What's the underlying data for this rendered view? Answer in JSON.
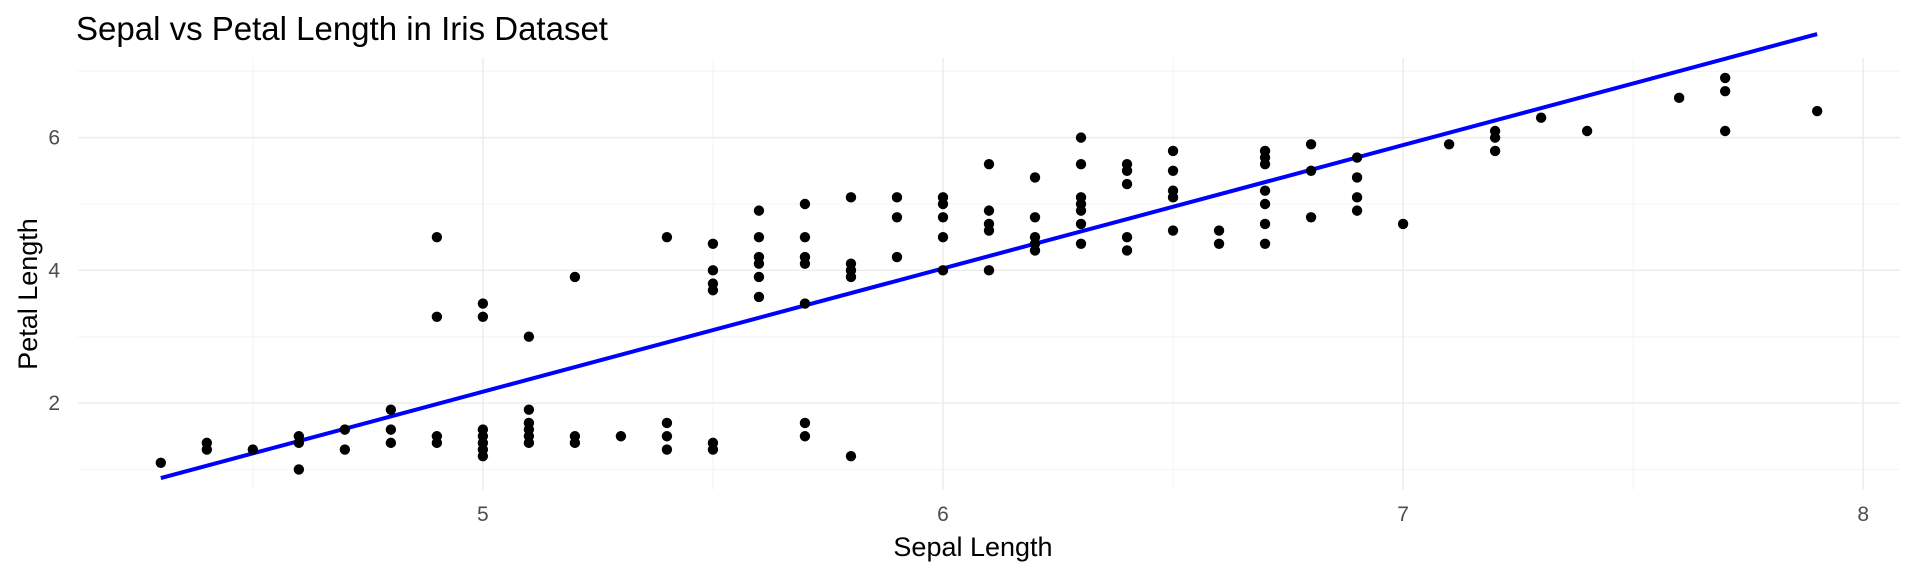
{
  "chart_data": {
    "type": "scatter",
    "title": "Sepal vs Petal Length in Iris Dataset",
    "xlabel": "Sepal Length",
    "ylabel": "Petal Length",
    "xlim": [
      4.12,
      8.08
    ],
    "ylim": [
      0.69,
      7.2
    ],
    "x_ticks": [
      5,
      6,
      7,
      8
    ],
    "y_ticks": [
      2,
      4,
      6
    ],
    "x_minor_ticks": [
      4.5,
      5.5,
      6.5,
      7.5
    ],
    "y_minor_ticks": [
      1,
      3,
      5,
      7
    ],
    "x_tick_labels": [
      "5",
      "6",
      "7",
      "8"
    ],
    "y_tick_labels": [
      "2",
      "4",
      "6"
    ],
    "grid": true,
    "point_color": "#000000",
    "trend_line": {
      "color": "#0000ff",
      "x": [
        4.3,
        7.9
      ],
      "y": [
        0.87,
        7.56
      ]
    },
    "points": [
      [
        4.3,
        1.1
      ],
      [
        4.4,
        1.4
      ],
      [
        4.4,
        1.3
      ],
      [
        4.5,
        1.3
      ],
      [
        4.6,
        1.5
      ],
      [
        4.6,
        1.4
      ],
      [
        4.6,
        1.0
      ],
      [
        4.7,
        1.6
      ],
      [
        4.7,
        1.3
      ],
      [
        4.8,
        1.9
      ],
      [
        4.8,
        1.6
      ],
      [
        4.8,
        1.4
      ],
      [
        4.9,
        4.5
      ],
      [
        4.9,
        3.3
      ],
      [
        4.9,
        1.5
      ],
      [
        4.9,
        1.4
      ],
      [
        5.0,
        3.5
      ],
      [
        5.0,
        3.3
      ],
      [
        5.0,
        1.6
      ],
      [
        5.0,
        1.5
      ],
      [
        5.0,
        1.4
      ],
      [
        5.0,
        1.3
      ],
      [
        5.0,
        1.2
      ],
      [
        5.1,
        3.0
      ],
      [
        5.1,
        1.9
      ],
      [
        5.1,
        1.7
      ],
      [
        5.1,
        1.6
      ],
      [
        5.1,
        1.5
      ],
      [
        5.1,
        1.4
      ],
      [
        5.2,
        3.9
      ],
      [
        5.2,
        1.5
      ],
      [
        5.2,
        1.4
      ],
      [
        5.3,
        1.5
      ],
      [
        5.4,
        4.5
      ],
      [
        5.4,
        1.7
      ],
      [
        5.4,
        1.5
      ],
      [
        5.4,
        1.3
      ],
      [
        5.5,
        4.4
      ],
      [
        5.5,
        4.0
      ],
      [
        5.5,
        3.8
      ],
      [
        5.5,
        3.7
      ],
      [
        5.5,
        1.4
      ],
      [
        5.5,
        1.3
      ],
      [
        5.6,
        4.9
      ],
      [
        5.6,
        4.5
      ],
      [
        5.6,
        4.2
      ],
      [
        5.6,
        4.1
      ],
      [
        5.6,
        3.9
      ],
      [
        5.6,
        3.6
      ],
      [
        5.7,
        5.0
      ],
      [
        5.7,
        4.5
      ],
      [
        5.7,
        4.2
      ],
      [
        5.7,
        4.1
      ],
      [
        5.7,
        3.5
      ],
      [
        5.7,
        1.7
      ],
      [
        5.7,
        1.5
      ],
      [
        5.8,
        5.1
      ],
      [
        5.8,
        4.1
      ],
      [
        5.8,
        4.0
      ],
      [
        5.8,
        3.9
      ],
      [
        5.8,
        1.2
      ],
      [
        5.9,
        5.1
      ],
      [
        5.9,
        4.8
      ],
      [
        5.9,
        4.2
      ],
      [
        6.0,
        5.1
      ],
      [
        6.0,
        5.0
      ],
      [
        6.0,
        4.8
      ],
      [
        6.0,
        4.5
      ],
      [
        6.0,
        4.0
      ],
      [
        6.1,
        5.6
      ],
      [
        6.1,
        4.9
      ],
      [
        6.1,
        4.7
      ],
      [
        6.1,
        4.6
      ],
      [
        6.1,
        4.0
      ],
      [
        6.2,
        5.4
      ],
      [
        6.2,
        4.8
      ],
      [
        6.2,
        4.5
      ],
      [
        6.2,
        4.4
      ],
      [
        6.2,
        4.3
      ],
      [
        6.3,
        6.0
      ],
      [
        6.3,
        5.6
      ],
      [
        6.3,
        5.1
      ],
      [
        6.3,
        5.0
      ],
      [
        6.3,
        4.9
      ],
      [
        6.3,
        4.7
      ],
      [
        6.3,
        4.4
      ],
      [
        6.4,
        5.6
      ],
      [
        6.4,
        5.5
      ],
      [
        6.4,
        5.3
      ],
      [
        6.4,
        4.5
      ],
      [
        6.4,
        4.3
      ],
      [
        6.5,
        5.8
      ],
      [
        6.5,
        5.5
      ],
      [
        6.5,
        5.2
      ],
      [
        6.5,
        5.1
      ],
      [
        6.5,
        4.6
      ],
      [
        6.6,
        4.6
      ],
      [
        6.6,
        4.4
      ],
      [
        6.7,
        5.8
      ],
      [
        6.7,
        5.7
      ],
      [
        6.7,
        5.6
      ],
      [
        6.7,
        5.2
      ],
      [
        6.7,
        5.0
      ],
      [
        6.7,
        4.7
      ],
      [
        6.7,
        4.4
      ],
      [
        6.8,
        5.9
      ],
      [
        6.8,
        5.5
      ],
      [
        6.8,
        4.8
      ],
      [
        6.9,
        5.7
      ],
      [
        6.9,
        5.4
      ],
      [
        6.9,
        5.1
      ],
      [
        6.9,
        4.9
      ],
      [
        7.0,
        4.7
      ],
      [
        7.1,
        5.9
      ],
      [
        7.2,
        6.1
      ],
      [
        7.2,
        6.0
      ],
      [
        7.2,
        5.8
      ],
      [
        7.3,
        6.3
      ],
      [
        7.4,
        6.1
      ],
      [
        7.6,
        6.6
      ],
      [
        7.7,
        6.9
      ],
      [
        7.7,
        6.7
      ],
      [
        7.7,
        6.1
      ],
      [
        7.9,
        6.4
      ]
    ]
  }
}
